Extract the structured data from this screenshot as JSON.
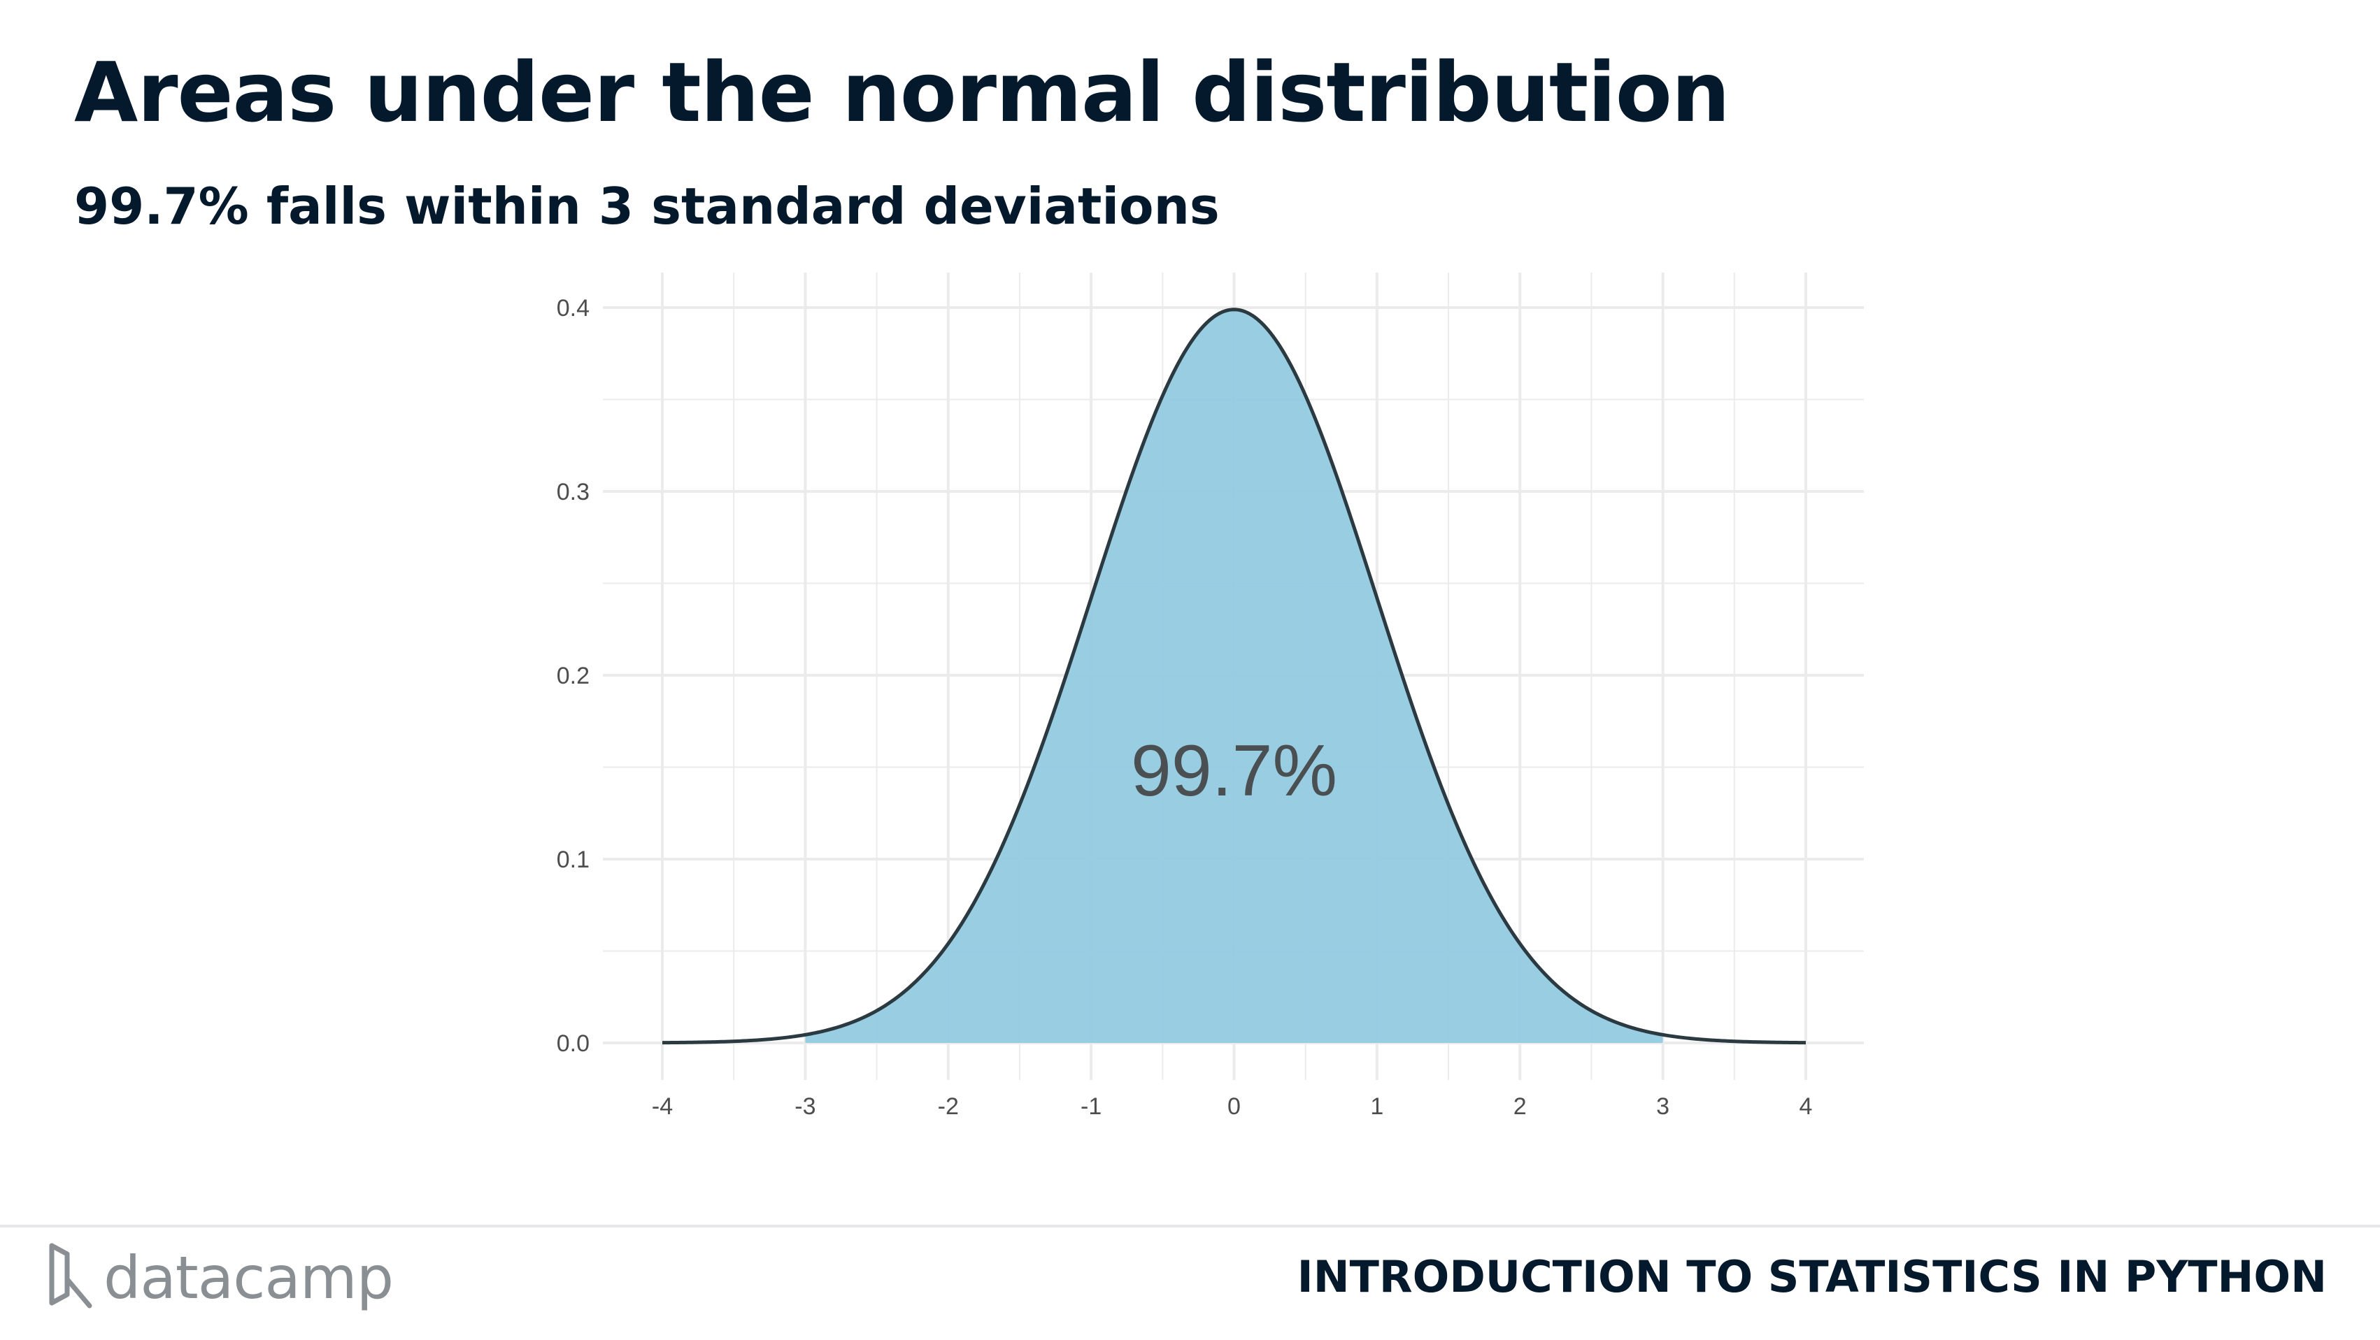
{
  "slide": {
    "title": "Areas under the normal distribution",
    "subtitle": "99.7% falls within 3 standard deviations"
  },
  "chart_data": {
    "type": "area",
    "distribution": "standard normal",
    "mean": 0,
    "sd": 1,
    "xlim": [
      -4,
      4
    ],
    "ylim": [
      0,
      0.4
    ],
    "x_ticks": [
      -4,
      -3,
      -2,
      -1,
      0,
      1,
      2,
      3,
      4
    ],
    "x_tick_labels": [
      "-4",
      "-3",
      "-2",
      "-1",
      "0",
      "1",
      "2",
      "3",
      "4"
    ],
    "y_ticks": [
      0,
      0.1,
      0.2,
      0.3,
      0.4
    ],
    "y_tick_labels": [
      "0.0",
      "0.1",
      "0.2",
      "0.3",
      "0.4"
    ],
    "shaded_region": [
      -3,
      3
    ],
    "annotation": "99.7%",
    "xlabel": "",
    "ylabel": "",
    "grid": true,
    "colors": {
      "fill": "#93cae0",
      "curve": "#2b3a40",
      "grid": "#ebebeb",
      "tick_text": "#4d4d4d",
      "annotation": "#4a4f51"
    }
  },
  "footer": {
    "logo_text": "datacamp",
    "logo_icon": "datacamp-logo-icon",
    "course": "INTRODUCTION TO STATISTICS IN PYTHON"
  }
}
